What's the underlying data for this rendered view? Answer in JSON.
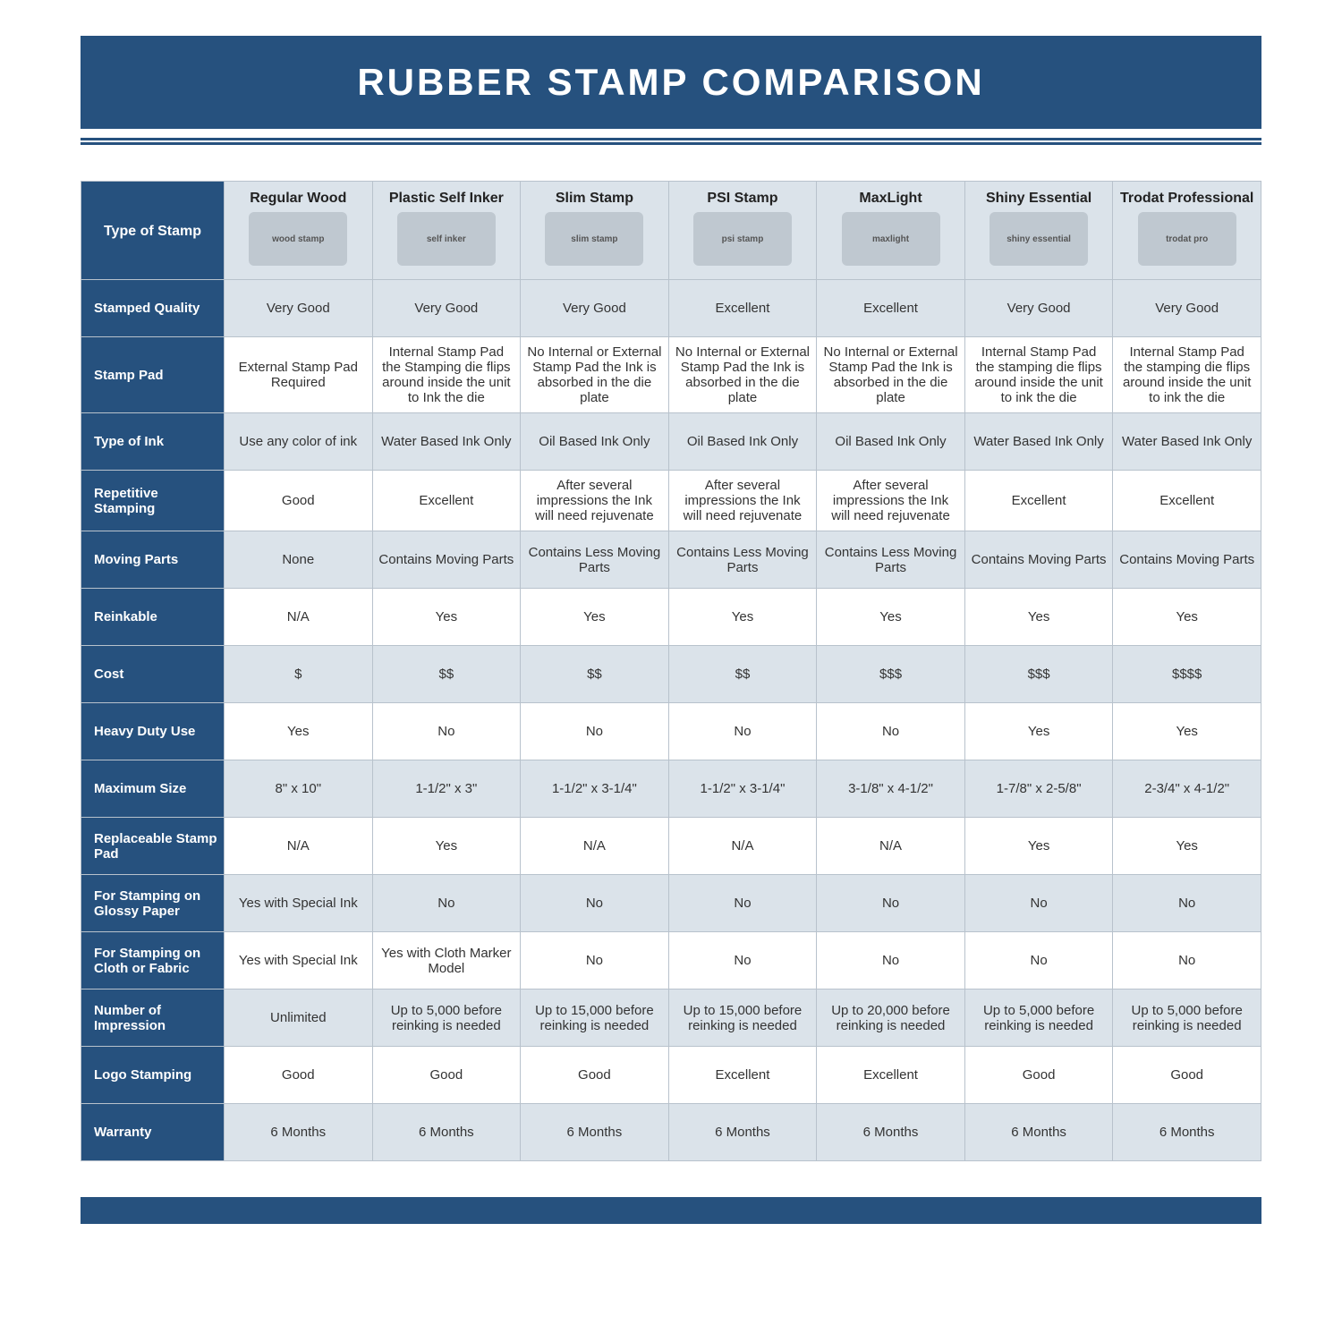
{
  "title": "RUBBER STAMP COMPARISON",
  "colors": {
    "brand": "#26517e",
    "shade": "#dbe3ea",
    "border": "#b8c2cc",
    "bg": "#ffffff"
  },
  "columns": [
    {
      "label": "Regular Wood",
      "img_alt": "wood stamp"
    },
    {
      "label": "Plastic Self Inker",
      "img_alt": "self inker"
    },
    {
      "label": "Slim Stamp",
      "img_alt": "slim stamp"
    },
    {
      "label": "PSI Stamp",
      "img_alt": "psi stamp"
    },
    {
      "label": "MaxLight",
      "img_alt": "maxlight"
    },
    {
      "label": "Shiny Essential",
      "img_alt": "shiny essential"
    },
    {
      "label": "Trodat Professional",
      "img_alt": "trodat pro"
    }
  ],
  "corner_label": "Type of Stamp",
  "rows": [
    {
      "shade": true,
      "label": "Stamped Quality",
      "cells": [
        "Very Good",
        "Very Good",
        "Very Good",
        "Excellent",
        "Excellent",
        "Very Good",
        "Very Good"
      ]
    },
    {
      "shade": false,
      "label": "Stamp Pad",
      "cells": [
        "External Stamp Pad Required",
        "Internal Stamp Pad the Stamping die flips around inside the unit to Ink the die",
        "No Internal or External Stamp Pad the Ink is absorbed in the die plate",
        "No Internal or External Stamp Pad the Ink is absorbed in the die plate",
        "No Internal or External Stamp Pad the Ink is absorbed in the die plate",
        "Internal Stamp Pad the stamping die flips around inside the unit to ink the die",
        "Internal Stamp Pad the stamping die flips around inside the unit to ink the die"
      ]
    },
    {
      "shade": true,
      "label": "Type of Ink",
      "cells": [
        "Use any color of ink",
        "Water Based Ink Only",
        "Oil Based Ink Only",
        "Oil Based Ink Only",
        "Oil Based Ink Only",
        "Water Based Ink Only",
        "Water Based Ink Only"
      ]
    },
    {
      "shade": false,
      "label": "Repetitive Stamping",
      "cells": [
        "Good",
        "Excellent",
        "After several impressions the Ink will need rejuvenate",
        "After several impressions the Ink will need rejuvenate",
        "After several impressions the Ink will need rejuvenate",
        "Excellent",
        "Excellent"
      ]
    },
    {
      "shade": true,
      "label": "Moving Parts",
      "cells": [
        "None",
        "Contains Moving Parts",
        "Contains Less Moving Parts",
        "Contains Less Moving Parts",
        "Contains Less Moving Parts",
        "Contains Moving Parts",
        "Contains Moving Parts"
      ]
    },
    {
      "shade": false,
      "label": "Reinkable",
      "cells": [
        "N/A",
        "Yes",
        "Yes",
        "Yes",
        "Yes",
        "Yes",
        "Yes"
      ]
    },
    {
      "shade": true,
      "label": "Cost",
      "cells": [
        "$",
        "$$",
        "$$",
        "$$",
        "$$$",
        "$$$",
        "$$$$"
      ]
    },
    {
      "shade": false,
      "label": "Heavy Duty Use",
      "cells": [
        "Yes",
        "No",
        "No",
        "No",
        "No",
        "Yes",
        "Yes"
      ]
    },
    {
      "shade": true,
      "label": "Maximum Size",
      "cells": [
        "8\" x 10\"",
        "1-1/2\" x 3\"",
        "1-1/2\" x 3-1/4\"",
        "1-1/2\" x 3-1/4\"",
        "3-1/8\" x 4-1/2\"",
        "1-7/8\" x 2-5/8\"",
        "2-3/4\" x 4-1/2\""
      ]
    },
    {
      "shade": false,
      "label": "Replaceable Stamp Pad",
      "cells": [
        "N/A",
        "Yes",
        "N/A",
        "N/A",
        "N/A",
        "Yes",
        "Yes"
      ]
    },
    {
      "shade": true,
      "label": "For Stamping on Glossy Paper",
      "cells": [
        "Yes with Special Ink",
        "No",
        "No",
        "No",
        "No",
        "No",
        "No"
      ]
    },
    {
      "shade": false,
      "label": "For Stamping on Cloth or Fabric",
      "cells": [
        "Yes with Special Ink",
        "Yes with Cloth Marker Model",
        "No",
        "No",
        "No",
        "No",
        "No"
      ]
    },
    {
      "shade": true,
      "label": "Number of Impression",
      "cells": [
        "Unlimited",
        "Up to 5,000 before reinking is needed",
        "Up to 15,000 before reinking is needed",
        "Up to 15,000 before reinking is needed",
        "Up to 20,000 before reinking is needed",
        "Up to 5,000 before reinking is needed",
        "Up to 5,000 before reinking is needed"
      ]
    },
    {
      "shade": false,
      "label": "Logo Stamping",
      "cells": [
        "Good",
        "Good",
        "Good",
        "Excellent",
        "Excellent",
        "Good",
        "Good"
      ]
    },
    {
      "shade": true,
      "label": "Warranty",
      "cells": [
        "6 Months",
        "6 Months",
        "6 Months",
        "6 Months",
        "6 Months",
        "6 Months",
        "6 Months"
      ]
    }
  ]
}
